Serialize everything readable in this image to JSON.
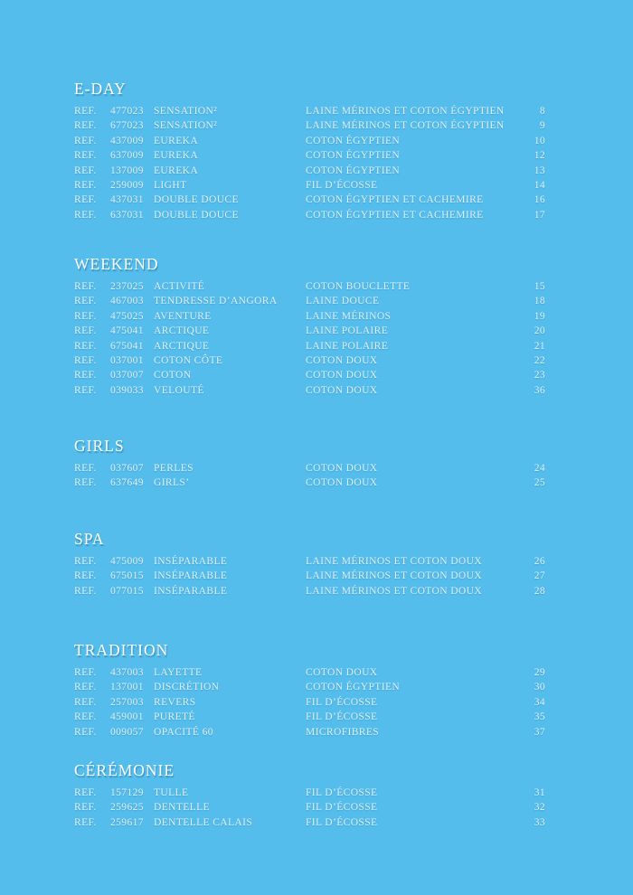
{
  "page": {
    "background_color": "#54bdec",
    "text_color": "#ffffff"
  },
  "table": {
    "ref_label": "REF."
  },
  "sections": [
    {
      "title": "E-DAY",
      "rows": [
        {
          "ref": "477023",
          "name": "SENSATION²",
          "material": "LAINE MÉRINOS ET COTON ÉGYPTIEN",
          "page": "8"
        },
        {
          "ref": "677023",
          "name": "SENSATION²",
          "material": "LAINE MÉRINOS ET COTON ÉGYPTIEN",
          "page": "9"
        },
        {
          "ref": "437009",
          "name": "EUREKA",
          "material": "COTON ÉGYPTIEN",
          "page": "10"
        },
        {
          "ref": "637009",
          "name": "EUREKA",
          "material": "COTON ÉGYPTIEN",
          "page": "12"
        },
        {
          "ref": "137009",
          "name": "EUREKA",
          "material": "COTON ÉGYPTIEN",
          "page": "13"
        },
        {
          "ref": "259009",
          "name": "LIGHT",
          "material": "FIL D’ÉCOSSE",
          "page": "14"
        },
        {
          "ref": "437031",
          "name": "DOUBLE DOUCE",
          "material": "COTON ÉGYPTIEN ET CACHEMIRE",
          "page": "16"
        },
        {
          "ref": "637031",
          "name": "DOUBLE DOUCE",
          "material": "COTON ÉGYPTIEN ET CACHEMIRE",
          "page": "17"
        }
      ]
    },
    {
      "title": "WEEKEND",
      "rows": [
        {
          "ref": "237025",
          "name": "ACTIVITÉ",
          "material": "COTON BOUCLETTE",
          "page": "15"
        },
        {
          "ref": "467003",
          "name": "TENDRESSE D’ANGORA",
          "material": "LAINE DOUCE",
          "page": "18"
        },
        {
          "ref": "475025",
          "name": "AVENTURE",
          "material": "LAINE MÉRINOS",
          "page": "19"
        },
        {
          "ref": "475041",
          "name": "ARCTIQUE",
          "material": "LAINE POLAIRE",
          "page": "20"
        },
        {
          "ref": "675041",
          "name": "ARCTIQUE",
          "material": "LAINE POLAIRE",
          "page": "21"
        },
        {
          "ref": "037001",
          "name": "COTON CÔTE",
          "material": "COTON DOUX",
          "page": "22"
        },
        {
          "ref": "037007",
          "name": "COTON",
          "material": "COTON DOUX",
          "page": "23"
        },
        {
          "ref": "039033",
          "name": "VELOUTÉ",
          "material": "COTON DOUX",
          "page": "36"
        }
      ]
    },
    {
      "title": "GIRLS",
      "rows": [
        {
          "ref": "037607",
          "name": "PERLES",
          "material": "COTON DOUX",
          "page": "24"
        },
        {
          "ref": "637649",
          "name": "GIRLS’",
          "material": "COTON DOUX",
          "page": "25"
        }
      ]
    },
    {
      "title": "SPA",
      "rows": [
        {
          "ref": "475009",
          "name": "INSÉPARABLE",
          "material": "LAINE MÉRINOS ET COTON DOUX",
          "page": "26"
        },
        {
          "ref": "675015",
          "name": "INSÉPARABLE",
          "material": "LAINE MÉRINOS ET COTON DOUX",
          "page": "27"
        },
        {
          "ref": "077015",
          "name": "INSÉPARABLE",
          "material": "LAINE MÉRINOS ET COTON DOUX",
          "page": "28"
        }
      ]
    },
    {
      "title": "TRADITION",
      "rows": [
        {
          "ref": "437003",
          "name": "LAYETTE",
          "material": "COTON DOUX",
          "page": "29"
        },
        {
          "ref": "137001",
          "name": "DISCRÉTION",
          "material": "COTON ÉGYPTIEN",
          "page": "30"
        },
        {
          "ref": "257003",
          "name": "REVERS",
          "material": "FIL D’ÉCOSSE",
          "page": "34"
        },
        {
          "ref": "459001",
          "name": "PURETÉ",
          "material": "FIL D’ÉCOSSE",
          "page": "35"
        },
        {
          "ref": "009057",
          "name": "OPACITÉ 60",
          "material": "MICROFIBRES",
          "page": "37"
        }
      ]
    },
    {
      "title": "CÉRÉMONIE",
      "rows": [
        {
          "ref": "157129",
          "name": "TULLE",
          "material": "FIL D’ÉCOSSE",
          "page": "31"
        },
        {
          "ref": "259625",
          "name": "DENTELLE",
          "material": "FIL D’ÉCOSSE",
          "page": "32"
        },
        {
          "ref": "259617",
          "name": "DENTELLE CALAIS",
          "material": "FIL D’ÉCOSSE",
          "page": "33"
        }
      ]
    }
  ]
}
